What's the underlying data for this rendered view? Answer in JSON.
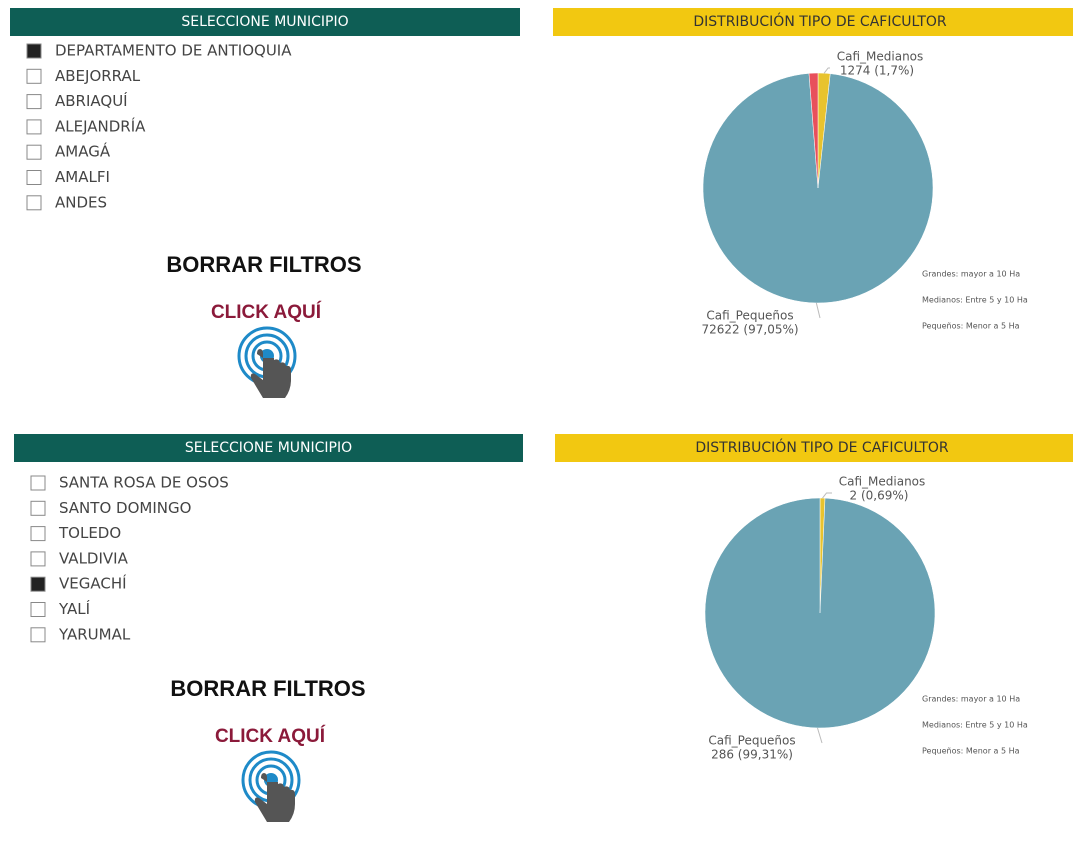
{
  "slicers": [
    {
      "title": "SELECCIONE MUNICIPIO",
      "items": [
        {
          "label": "DEPARTAMENTO DE ANTIOQUIA",
          "selected": true
        },
        {
          "label": "ABEJORRAL",
          "selected": false
        },
        {
          "label": "ABRIAQUÍ",
          "selected": false
        },
        {
          "label": "ALEJANDRÍA",
          "selected": false
        },
        {
          "label": "AMAGÁ",
          "selected": false
        },
        {
          "label": "AMALFI",
          "selected": false
        },
        {
          "label": "ANDES",
          "selected": false
        }
      ]
    },
    {
      "title": "SELECCIONE MUNICIPIO",
      "items": [
        {
          "label": "SANTA ROSA DE OSOS",
          "selected": false
        },
        {
          "label": "SANTO DOMINGO",
          "selected": false
        },
        {
          "label": "TOLEDO",
          "selected": false
        },
        {
          "label": "VALDIVIA",
          "selected": false
        },
        {
          "label": "VEGACHÍ",
          "selected": true
        },
        {
          "label": "YALÍ",
          "selected": false
        },
        {
          "label": "YARUMAL",
          "selected": false
        }
      ]
    }
  ],
  "buttons": [
    {
      "title": "BORRAR FILTROS",
      "action": "CLICK AQUÍ"
    },
    {
      "title": "BORRAR FILTROS",
      "action": "CLICK AQUÍ"
    }
  ],
  "chart_data": [
    {
      "type": "pie",
      "title": "DISTRIBUCIÓN TIPO DE CAFICULTOR",
      "categories": [
        "Cafi_Medianos",
        "Cafi_Pequeños",
        null
      ],
      "values": [
        1274,
        72622,
        934
      ],
      "value_labels": [
        "1274 (1,7%)",
        "72622 (97,05%)",
        null
      ],
      "colors": [
        "#e8c32e",
        "#6aa3b4",
        "#e8505b"
      ],
      "annotations": [
        "Grandes: mayor a 10 Ha",
        "Medianos: Entre 5 y 10 Ha",
        "Pequeños: Menor a 5 Ha"
      ]
    },
    {
      "type": "pie",
      "title": "DISTRIBUCIÓN TIPO DE CAFICULTOR",
      "categories": [
        "Cafi_Medianos",
        "Cafi_Pequeños"
      ],
      "values": [
        2,
        286
      ],
      "value_labels": [
        "2 (0,69%)",
        "286 (99,31%)"
      ],
      "colors": [
        "#e8c32e",
        "#6aa3b4"
      ],
      "annotations": [
        "Grandes: mayor a 10 Ha",
        "Medianos: Entre 5 y 10 Ha",
        "Pequeños: Menor a 5 Ha"
      ]
    }
  ]
}
